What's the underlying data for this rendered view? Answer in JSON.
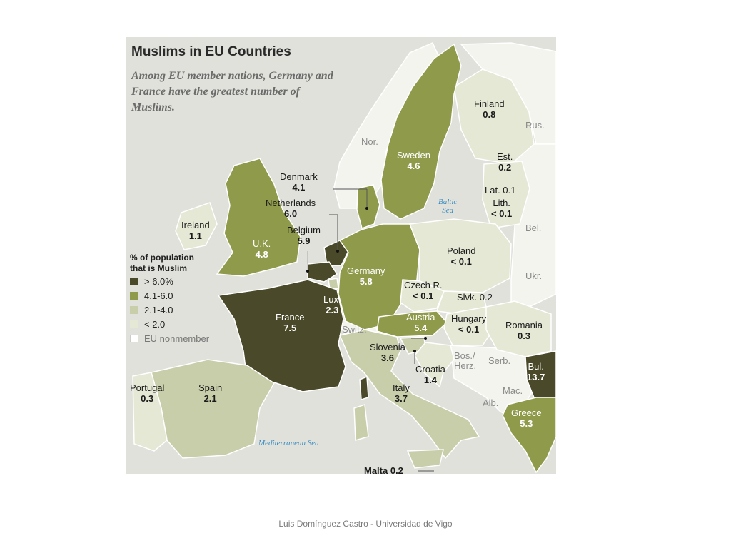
{
  "title": "Muslims in EU Countries",
  "subtitle": "Among EU member nations, Germany and France have the greatest number of Muslims.",
  "legend": {
    "title_line1": "% of population",
    "title_line2": "that is Muslim",
    "items": [
      {
        "label": "> 6.0%",
        "color": "#4a4a2a"
      },
      {
        "label": "4.1-6.0",
        "color": "#8f9a4a"
      },
      {
        "label": "2.1-4.0",
        "color": "#c9ceaa"
      },
      {
        "label": "< 2.0",
        "color": "#e6e8d6"
      },
      {
        "label": "EU nonmember",
        "color": "#ffffff"
      }
    ]
  },
  "countries": {
    "finland": {
      "name": "Finland",
      "value": "0.8"
    },
    "sweden": {
      "name": "Sweden",
      "value": "4.6"
    },
    "estonia": {
      "name": "Est.",
      "value": "0.2"
    },
    "latvia": {
      "name": "Lat. 0.1"
    },
    "lithuania": {
      "name": "Lith.",
      "value": "< 0.1"
    },
    "denmark": {
      "name": "Denmark",
      "value": "4.1"
    },
    "netherlands": {
      "name": "Netherlands",
      "value": "6.0"
    },
    "belgium": {
      "name": "Belgium",
      "value": "5.9"
    },
    "ireland": {
      "name": "Ireland",
      "value": "1.1"
    },
    "uk": {
      "name": "U.K.",
      "value": "4.8"
    },
    "germany": {
      "name": "Germany",
      "value": "5.8"
    },
    "poland": {
      "name": "Poland",
      "value": "< 0.1"
    },
    "czech": {
      "name": "Czech R.",
      "value": "< 0.1"
    },
    "slovakia": {
      "name": "Slvk. 0.2"
    },
    "luxembourg": {
      "name": "Lux.",
      "value": "2.3"
    },
    "france": {
      "name": "France",
      "value": "7.5"
    },
    "austria": {
      "name": "Austria",
      "value": "5.4"
    },
    "hungary": {
      "name": "Hungary",
      "value": "< 0.1"
    },
    "romania": {
      "name": "Romania",
      "value": "0.3"
    },
    "slovenia": {
      "name": "Slovenia",
      "value": "3.6"
    },
    "croatia": {
      "name": "Croatia",
      "value": "1.4"
    },
    "bulgaria": {
      "name": "Bul.",
      "value": "13.7"
    },
    "portugal": {
      "name": "Portugal",
      "value": "0.3"
    },
    "spain": {
      "name": "Spain",
      "value": "2.1"
    },
    "italy": {
      "name": "Italy",
      "value": "3.7"
    },
    "greece": {
      "name": "Greece",
      "value": "5.3"
    },
    "malta": {
      "name": "Malta 0.2"
    }
  },
  "nonmembers": {
    "norway": "Nor.",
    "russia": "Rus.",
    "belarus": "Bel.",
    "ukraine": "Ukr.",
    "switzerland": "Switz.",
    "bosnia_1": "Bos./",
    "bosnia_2": "Herz.",
    "serbia": "Serb.",
    "macedonia": "Mac.",
    "albania": "Alb."
  },
  "seas": {
    "baltic_1": "Baltic",
    "baltic_2": "Sea",
    "mediterranean": "Mediterranean Sea"
  },
  "footer": "Luis Domínguez Castro - Universidad de Vigo",
  "colors": {
    "sea": "#dfe1da",
    "land": "#f4f4ef",
    "border": "#ffffff"
  }
}
